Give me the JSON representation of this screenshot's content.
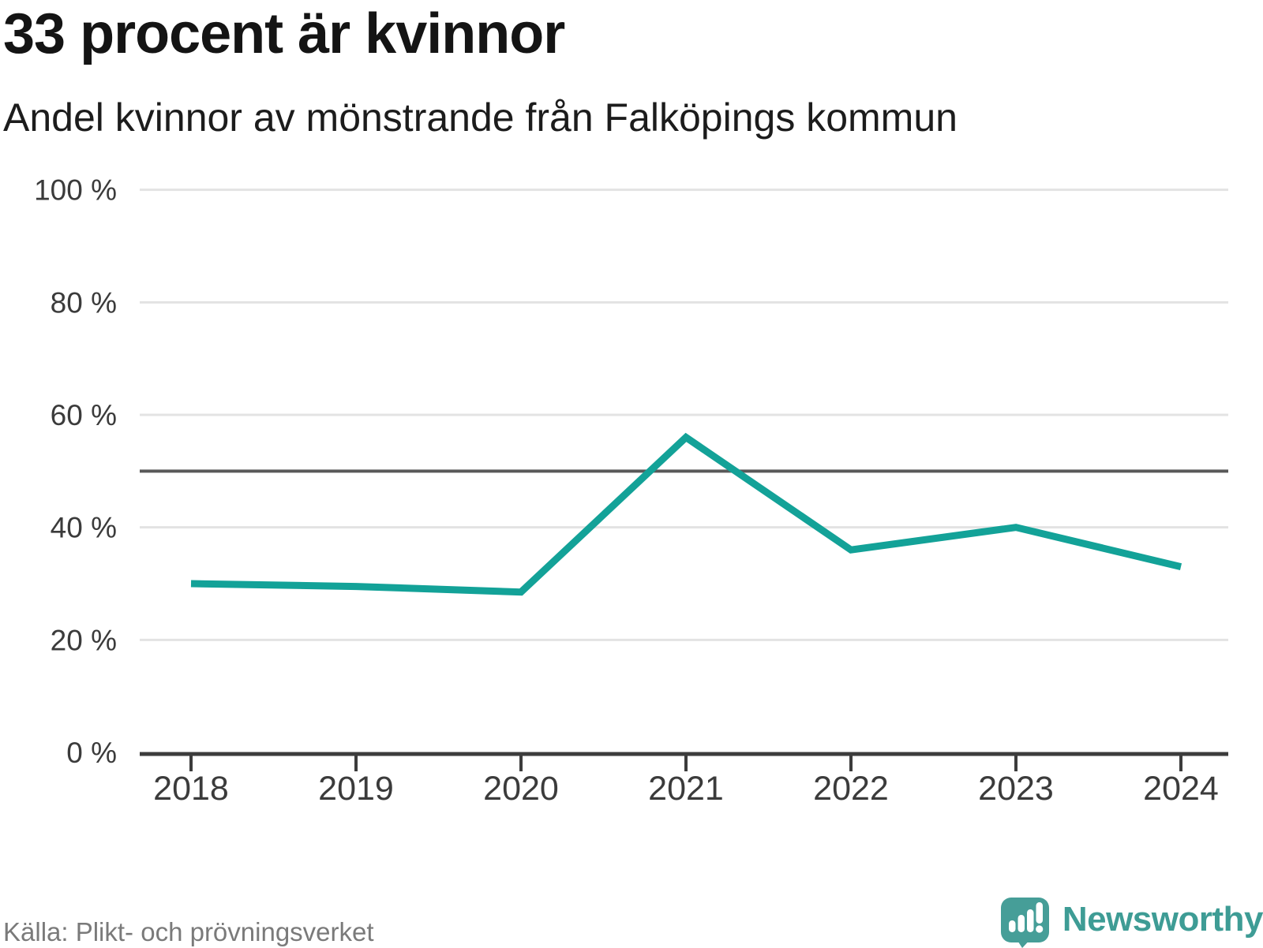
{
  "header": {
    "title": "33 procent är kvinnor",
    "subtitle": "Andel kvinnor av mönstrande från Falköpings kommun"
  },
  "chart_data": {
    "type": "line",
    "title": "33 procent är kvinnor",
    "subtitle": "Andel kvinnor av mönstrande från Falköpings kommun",
    "x": [
      2018,
      2019,
      2020,
      2021,
      2022,
      2023,
      2024
    ],
    "series": [
      {
        "name": "Andel kvinnor av mönstrande",
        "values": [
          30,
          29.5,
          28.5,
          56,
          36,
          40,
          33
        ]
      }
    ],
    "unit": "%",
    "ylim": [
      0,
      100
    ],
    "yticks": [
      0,
      20,
      40,
      60,
      80,
      100
    ],
    "ytick_suffix": " %",
    "reference_line": 50,
    "grid": true,
    "legend": "none",
    "colors": {
      "line": "#13a298",
      "grid": "#e3e3e3",
      "reference": "#595959",
      "axis": "#3c3c3c",
      "tick_label": "#3b3b3b"
    }
  },
  "footer": {
    "source": "Källa: Plikt- och prövningsverket",
    "brand": "Newsworthy",
    "brand_icon": "speech-bubble-bar-chart-icon",
    "brand_color": "#469e98"
  }
}
